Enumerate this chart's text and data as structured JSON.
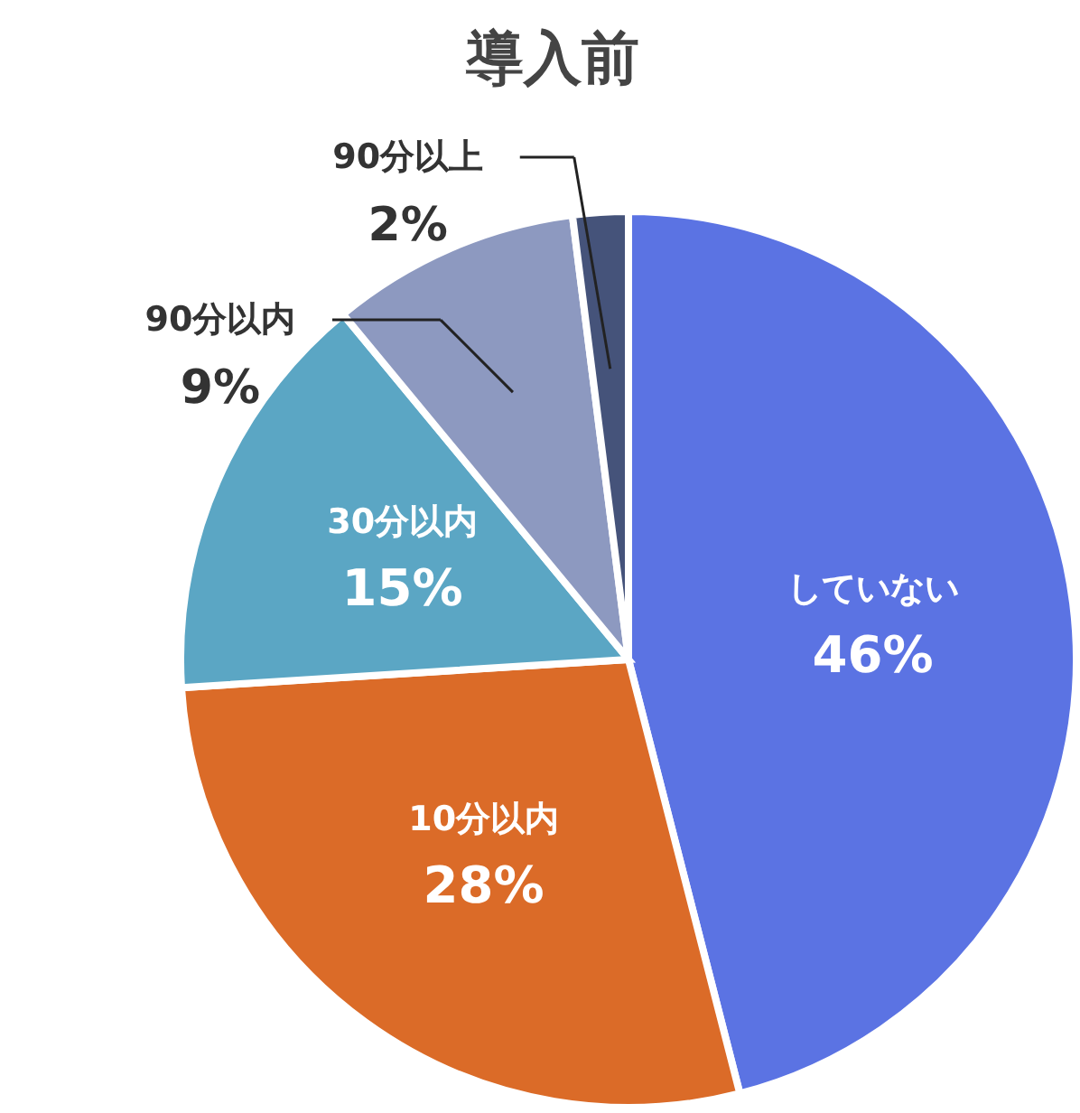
{
  "chart_data": {
    "type": "pie",
    "title": "導入前",
    "categories": [
      "していない",
      "10分以内",
      "30分以内",
      "90分以内",
      "90分以上"
    ],
    "values": [
      46,
      28,
      15,
      9,
      2
    ],
    "value_labels": [
      "46%",
      "28%",
      "15%",
      "9%",
      "2%"
    ],
    "colors": [
      "#5b73e3",
      "#db6b28",
      "#5ba6c4",
      "#8d99c0",
      "#45537a"
    ]
  }
}
